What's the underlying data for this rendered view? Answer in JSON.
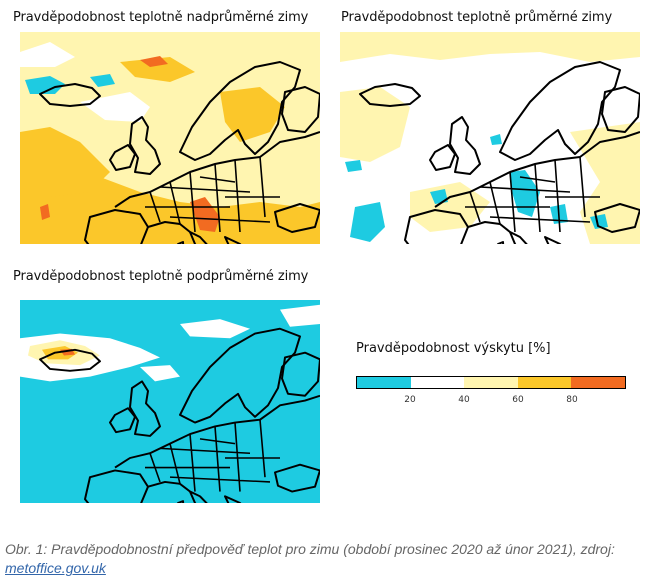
{
  "panels": [
    {
      "title": "Pravděpodobnost teplotně nadprůměrné zimy"
    },
    {
      "title": "Pravděpodobnost teplotně průměrné zimy"
    },
    {
      "title": "Pravděpodobnost teplotně podprůměrné zimy"
    }
  ],
  "legend": {
    "title": "Pravděpodobnost výskytu [%]",
    "ticks": [
      "20",
      "40",
      "60",
      "80"
    ],
    "colors": {
      "0-20": "#1ecbe1",
      "20-40": "#ffffff",
      "40-60": "#fff5b0",
      "60-80": "#fbc72a",
      "80-100": "#f26b21"
    }
  },
  "caption": {
    "text": "Obr. 1: Pravděpodobnostní předpověď teplot pro zimu (období prosinec 2020 až únor 2021), zdroj:",
    "link": "metoffice.gov.uk"
  }
}
